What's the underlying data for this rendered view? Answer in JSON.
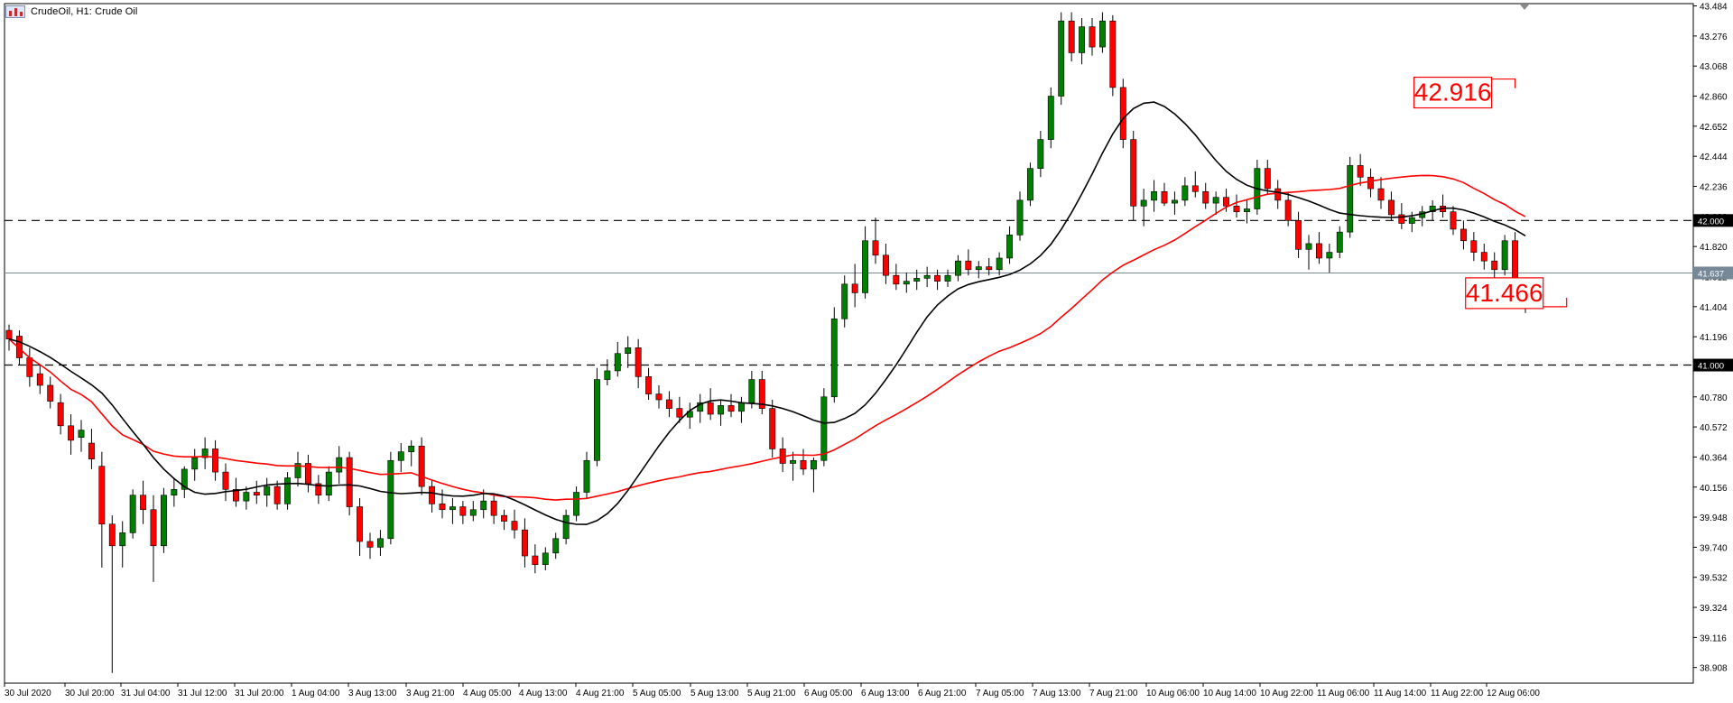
{
  "header": {
    "title": "CrudeOil, H1:  Crude Oil",
    "icon_name": "chart-window-icon"
  },
  "chart_data": {
    "type": "candlestick",
    "symbol": "CrudeOil",
    "timeframe": "H1",
    "description": "Crude Oil",
    "ylim": [
      38.8,
      43.5
    ],
    "y_ticks": [
      "43.484",
      "43.276",
      "43.068",
      "42.860",
      "42.652",
      "42.444",
      "42.236",
      "42.028",
      "41.820",
      "41.612",
      "41.404",
      "41.196",
      "40.988",
      "40.780",
      "40.572",
      "40.364",
      "40.156",
      "39.948",
      "39.740",
      "39.532",
      "39.324",
      "39.116",
      "38.908"
    ],
    "x_ticks": [
      "30 Jul 2020",
      "30 Jul 20:00",
      "31 Jul 04:00",
      "31 Jul 12:00",
      "31 Jul 20:00",
      "1 Aug 04:00",
      "3 Aug 13:00",
      "3 Aug 21:00",
      "4 Aug 05:00",
      "4 Aug 13:00",
      "4 Aug 21:00",
      "5 Aug 05:00",
      "5 Aug 13:00",
      "5 Aug 21:00",
      "6 Aug 05:00",
      "6 Aug 13:00",
      "6 Aug 21:00",
      "7 Aug 05:00",
      "7 Aug 13:00",
      "7 Aug 21:00",
      "10 Aug 06:00",
      "10 Aug 14:00",
      "10 Aug 22:00",
      "11 Aug 06:00",
      "11 Aug 14:00",
      "11 Aug 22:00",
      "12 Aug 06:00"
    ],
    "horizontal_levels": [
      {
        "value": 42.0,
        "label": "42.000",
        "style": "dashed"
      },
      {
        "value": 41.0,
        "label": "41.000",
        "style": "dashed"
      }
    ],
    "current_price": {
      "value": 41.637,
      "label": "41.637"
    },
    "annotations": [
      {
        "label": "42.916",
        "value": 42.916,
        "anchor_candle": 146
      },
      {
        "label": "41.466",
        "value": 41.466,
        "anchor_candle": 151
      }
    ],
    "colors": {
      "bull": "#008000",
      "bear": "#ff0000",
      "wick": "#000000",
      "ma_fast": "#000000",
      "ma_slow": "#ff0000",
      "level_line": "#000000",
      "price_line": "#778899",
      "annotation": "#ff0000"
    },
    "candles": {
      "columns": [
        "open",
        "high",
        "low",
        "close"
      ],
      "values": [
        [
          41.24,
          41.28,
          41.1,
          41.18
        ],
        [
          41.2,
          41.24,
          41.0,
          41.05
        ],
        [
          41.05,
          41.12,
          40.85,
          40.92
        ],
        [
          40.94,
          41.0,
          40.8,
          40.86
        ],
        [
          40.86,
          40.92,
          40.7,
          40.75
        ],
        [
          40.74,
          40.8,
          40.52,
          40.58
        ],
        [
          40.58,
          40.66,
          40.38,
          40.48
        ],
        [
          40.5,
          40.62,
          40.4,
          40.55
        ],
        [
          40.46,
          40.56,
          40.28,
          40.35
        ],
        [
          40.3,
          40.4,
          39.6,
          39.9
        ],
        [
          39.9,
          39.96,
          38.87,
          39.75
        ],
        [
          39.75,
          39.92,
          39.6,
          39.84
        ],
        [
          39.84,
          40.14,
          39.8,
          40.1
        ],
        [
          40.1,
          40.2,
          39.9,
          40.0
        ],
        [
          40.0,
          40.1,
          39.5,
          39.75
        ],
        [
          39.75,
          40.15,
          39.7,
          40.1
        ],
        [
          40.1,
          40.22,
          40.02,
          40.14
        ],
        [
          40.14,
          40.3,
          40.08,
          40.28
        ],
        [
          40.28,
          40.42,
          40.2,
          40.36
        ],
        [
          40.36,
          40.5,
          40.28,
          40.42
        ],
        [
          40.42,
          40.48,
          40.2,
          40.26
        ],
        [
          40.26,
          40.32,
          40.06,
          40.14
        ],
        [
          40.14,
          40.22,
          40.02,
          40.06
        ],
        [
          40.06,
          40.16,
          40.0,
          40.12
        ],
        [
          40.12,
          40.2,
          40.04,
          40.1
        ],
        [
          40.1,
          40.22,
          40.02,
          40.16
        ],
        [
          40.16,
          40.2,
          40.0,
          40.04
        ],
        [
          40.04,
          40.26,
          40.0,
          40.22
        ],
        [
          40.22,
          40.4,
          40.16,
          40.32
        ],
        [
          40.32,
          40.38,
          40.12,
          40.18
        ],
        [
          40.18,
          40.24,
          40.04,
          40.1
        ],
        [
          40.1,
          40.3,
          40.06,
          40.26
        ],
        [
          40.26,
          40.44,
          40.18,
          40.36
        ],
        [
          40.36,
          40.4,
          39.96,
          40.02
        ],
        [
          40.02,
          40.08,
          39.68,
          39.78
        ],
        [
          39.78,
          39.84,
          39.66,
          39.74
        ],
        [
          39.74,
          39.86,
          39.68,
          39.8
        ],
        [
          39.8,
          40.4,
          39.76,
          40.34
        ],
        [
          40.34,
          40.46,
          40.26,
          40.4
        ],
        [
          40.4,
          40.48,
          40.3,
          40.44
        ],
        [
          40.44,
          40.5,
          40.1,
          40.16
        ],
        [
          40.16,
          40.2,
          39.98,
          40.04
        ],
        [
          40.04,
          40.14,
          39.94,
          40.0
        ],
        [
          40.0,
          40.08,
          39.9,
          40.02
        ],
        [
          40.02,
          40.06,
          39.9,
          39.96
        ],
        [
          39.96,
          40.06,
          39.92,
          40.0
        ],
        [
          40.0,
          40.14,
          39.94,
          40.06
        ],
        [
          40.06,
          40.1,
          39.9,
          39.96
        ],
        [
          39.96,
          40.0,
          39.86,
          39.92
        ],
        [
          39.92,
          40.0,
          39.8,
          39.86
        ],
        [
          39.86,
          39.94,
          39.6,
          39.68
        ],
        [
          39.68,
          39.76,
          39.56,
          39.62
        ],
        [
          39.62,
          39.74,
          39.58,
          39.7
        ],
        [
          39.7,
          39.84,
          39.66,
          39.8
        ],
        [
          39.8,
          40.0,
          39.76,
          39.96
        ],
        [
          39.96,
          40.16,
          39.92,
          40.12
        ],
        [
          40.12,
          40.4,
          40.08,
          40.34
        ],
        [
          40.34,
          40.98,
          40.3,
          40.9
        ],
        [
          40.9,
          41.04,
          40.86,
          40.96
        ],
        [
          40.96,
          41.16,
          40.92,
          41.08
        ],
        [
          41.08,
          41.2,
          40.98,
          41.12
        ],
        [
          41.12,
          41.18,
          40.84,
          40.92
        ],
        [
          40.92,
          40.98,
          40.76,
          40.8
        ],
        [
          40.8,
          40.86,
          40.7,
          40.76
        ],
        [
          40.76,
          40.82,
          40.64,
          40.7
        ],
        [
          40.7,
          40.78,
          40.6,
          40.64
        ],
        [
          40.64,
          40.74,
          40.56,
          40.68
        ],
        [
          40.68,
          40.8,
          40.6,
          40.74
        ],
        [
          40.74,
          40.84,
          40.62,
          40.66
        ],
        [
          40.66,
          40.76,
          40.58,
          40.72
        ],
        [
          40.72,
          40.8,
          40.64,
          40.68
        ],
        [
          40.68,
          40.78,
          40.6,
          40.74
        ],
        [
          40.74,
          40.96,
          40.7,
          40.9
        ],
        [
          40.9,
          40.96,
          40.66,
          40.7
        ],
        [
          40.7,
          40.76,
          40.36,
          40.42
        ],
        [
          40.42,
          40.5,
          40.26,
          40.32
        ],
        [
          40.32,
          40.4,
          40.2,
          40.34
        ],
        [
          40.34,
          40.42,
          40.24,
          40.28
        ],
        [
          40.28,
          40.36,
          40.12,
          40.34
        ],
        [
          40.34,
          40.84,
          40.3,
          40.78
        ],
        [
          40.78,
          41.4,
          40.74,
          41.32
        ],
        [
          41.32,
          41.62,
          41.26,
          41.56
        ],
        [
          41.56,
          41.7,
          41.4,
          41.5
        ],
        [
          41.5,
          41.96,
          41.46,
          41.86
        ],
        [
          41.86,
          42.02,
          41.7,
          41.76
        ],
        [
          41.76,
          41.84,
          41.56,
          41.62
        ],
        [
          41.62,
          41.7,
          41.52,
          41.56
        ],
        [
          41.56,
          41.64,
          41.5,
          41.58
        ],
        [
          41.58,
          41.66,
          41.52,
          41.6
        ],
        [
          41.6,
          41.68,
          41.54,
          41.62
        ],
        [
          41.62,
          41.66,
          41.52,
          41.58
        ],
        [
          41.58,
          41.66,
          41.54,
          41.62
        ],
        [
          41.62,
          41.76,
          41.58,
          41.72
        ],
        [
          41.72,
          41.8,
          41.62,
          41.66
        ],
        [
          41.66,
          41.72,
          41.6,
          41.68
        ],
        [
          41.68,
          41.74,
          41.62,
          41.66
        ],
        [
          41.66,
          41.78,
          41.62,
          41.74
        ],
        [
          41.74,
          41.96,
          41.7,
          41.9
        ],
        [
          41.9,
          42.2,
          41.86,
          42.14
        ],
        [
          42.14,
          42.4,
          42.1,
          42.36
        ],
        [
          42.36,
          42.62,
          42.3,
          42.56
        ],
        [
          42.56,
          42.92,
          42.5,
          42.86
        ],
        [
          42.86,
          43.44,
          42.8,
          43.38
        ],
        [
          43.38,
          43.44,
          43.1,
          43.16
        ],
        [
          43.16,
          43.4,
          43.08,
          43.34
        ],
        [
          43.34,
          43.4,
          43.14,
          43.2
        ],
        [
          43.2,
          43.44,
          43.16,
          43.38
        ],
        [
          43.38,
          43.42,
          42.86,
          42.92
        ],
        [
          42.92,
          42.98,
          42.5,
          42.56
        ],
        [
          42.56,
          42.62,
          42.0,
          42.1
        ],
        [
          42.1,
          42.22,
          41.96,
          42.14
        ],
        [
          42.14,
          42.28,
          42.06,
          42.2
        ],
        [
          42.2,
          42.26,
          42.1,
          42.12
        ],
        [
          42.12,
          42.2,
          42.04,
          42.14
        ],
        [
          42.14,
          42.3,
          42.1,
          42.24
        ],
        [
          42.24,
          42.34,
          42.16,
          42.2
        ],
        [
          42.2,
          42.26,
          42.08,
          42.12
        ],
        [
          42.12,
          42.2,
          42.04,
          42.16
        ],
        [
          42.16,
          42.22,
          42.06,
          42.1
        ],
        [
          42.1,
          42.18,
          42.02,
          42.06
        ],
        [
          42.06,
          42.14,
          41.98,
          42.08
        ],
        [
          42.08,
          42.42,
          42.04,
          42.36
        ],
        [
          42.36,
          42.42,
          42.18,
          42.22
        ],
        [
          42.22,
          42.28,
          42.08,
          42.14
        ],
        [
          42.14,
          42.2,
          41.96,
          42.0
        ],
        [
          42.0,
          42.06,
          41.74,
          41.8
        ],
        [
          41.8,
          41.9,
          41.66,
          41.84
        ],
        [
          41.84,
          41.92,
          41.7,
          41.74
        ],
        [
          41.74,
          41.84,
          41.64,
          41.78
        ],
        [
          41.78,
          41.96,
          41.74,
          41.92
        ],
        [
          41.92,
          42.44,
          41.88,
          42.38
        ],
        [
          42.38,
          42.46,
          42.24,
          42.3
        ],
        [
          42.3,
          42.36,
          42.16,
          42.22
        ],
        [
          42.22,
          42.3,
          42.08,
          42.14
        ],
        [
          42.14,
          42.2,
          42.0,
          42.04
        ],
        [
          42.04,
          42.12,
          41.94,
          41.98
        ],
        [
          41.98,
          42.06,
          41.92,
          42.02
        ],
        [
          42.02,
          42.1,
          41.96,
          42.06
        ],
        [
          42.06,
          42.14,
          42.0,
          42.1
        ],
        [
          42.1,
          42.18,
          42.02,
          42.06
        ],
        [
          42.06,
          42.1,
          41.9,
          41.94
        ],
        [
          41.94,
          42.0,
          41.8,
          41.86
        ],
        [
          41.86,
          41.92,
          41.72,
          41.78
        ],
        [
          41.78,
          41.84,
          41.66,
          41.72
        ],
        [
          41.72,
          41.78,
          41.6,
          41.66
        ],
        [
          41.66,
          41.9,
          41.62,
          41.86
        ],
        [
          41.86,
          41.92,
          41.44,
          41.5
        ],
        [
          41.5,
          41.56,
          41.36,
          41.42
        ]
      ]
    },
    "ma_fast_values": [],
    "ma_slow_values": []
  }
}
